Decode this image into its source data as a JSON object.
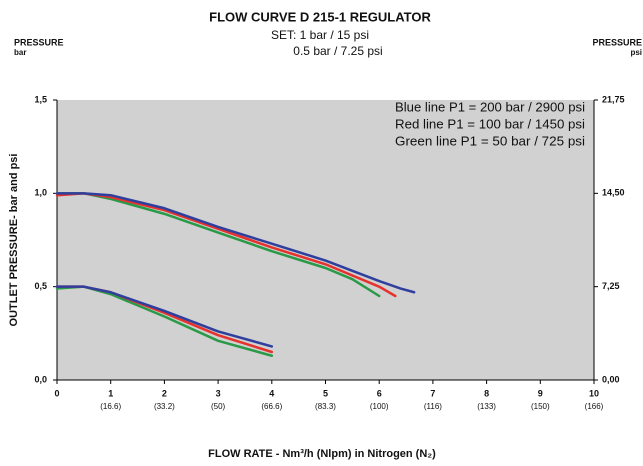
{
  "chart_data": {
    "type": "line",
    "title": "FLOW CURVE D 215-1 REGULATOR",
    "subtitle": [
      "SET: 1 bar / 15 psi",
      "0.5 bar / 7.25 psi"
    ],
    "left_axis_header": [
      "PRESSURE",
      "bar"
    ],
    "right_axis_header": [
      "PRESSURE",
      "psi"
    ],
    "y_label": "OUTLET PRESSURE- bar and psi",
    "x_label": "FLOW RATE - Nm³/h (Nlpm) in Nitrogen (N₂)",
    "xlim": [
      0,
      10
    ],
    "xticks": [
      0,
      1,
      2,
      3,
      4,
      5,
      6,
      7,
      8,
      9,
      10
    ],
    "xticks2": [
      {
        "value": 1,
        "label": "(16.6)"
      },
      {
        "value": 2,
        "label": "(33.2)"
      },
      {
        "value": 3,
        "label": "(50)"
      },
      {
        "value": 4,
        "label": "(66.6)"
      },
      {
        "value": 5,
        "label": "(83.3)"
      },
      {
        "value": 6,
        "label": "(100)"
      },
      {
        "value": 7,
        "label": "(116)"
      },
      {
        "value": 8,
        "label": "(133)"
      },
      {
        "value": 9,
        "label": "(150)"
      },
      {
        "value": 10,
        "label": "(166)"
      }
    ],
    "ylim": [
      0,
      1.5
    ],
    "yticks": [
      {
        "value": 0,
        "label": "0,0"
      },
      {
        "value": 0.5,
        "label": "0,5"
      },
      {
        "value": 1,
        "label": "1,0"
      },
      {
        "value": 1.5,
        "label": "1,5"
      }
    ],
    "y2lim": [
      0,
      21.75
    ],
    "y2ticks": [
      {
        "value": 0,
        "label": "0,00"
      },
      {
        "value": 7.25,
        "label": "7,25"
      },
      {
        "value": 14.5,
        "label": "14,50"
      },
      {
        "value": 21.75,
        "label": "21,75"
      }
    ],
    "background": "#d1d1d1",
    "series": [
      {
        "name": "Blue line P1 = 200 bar / 2900 psi",
        "color": "#2f3f9e",
        "x": [
          0,
          0.5,
          1,
          2,
          3,
          4,
          5,
          6,
          6.4,
          6.65
        ],
        "values": [
          1.0,
          1.0,
          0.99,
          0.92,
          0.82,
          0.73,
          0.64,
          0.53,
          0.49,
          0.47
        ]
      },
      {
        "name": "Red line P1 = 100 bar / 1450 psi",
        "color": "#e5322d",
        "x": [
          0,
          0.5,
          1,
          2,
          3,
          4,
          5,
          6,
          6.3
        ],
        "values": [
          0.99,
          1.0,
          0.98,
          0.91,
          0.81,
          0.71,
          0.62,
          0.5,
          0.45
        ]
      },
      {
        "name": "Green line P1 = 50 bar / 725 psi",
        "color": "#2a9a48",
        "x": [
          0,
          0.5,
          1,
          2,
          3,
          4,
          5,
          5.5,
          6
        ],
        "values": [
          1.0,
          1.0,
          0.97,
          0.89,
          0.79,
          0.69,
          0.6,
          0.54,
          0.45
        ]
      },
      {
        "color": "#2f3f9e",
        "x": [
          0,
          0.5,
          1,
          2,
          3,
          4
        ],
        "values": [
          0.5,
          0.5,
          0.47,
          0.37,
          0.26,
          0.18
        ]
      },
      {
        "color": "#e5322d",
        "x": [
          0,
          0.5,
          1,
          2,
          3,
          4
        ],
        "values": [
          0.5,
          0.5,
          0.47,
          0.36,
          0.24,
          0.15
        ]
      },
      {
        "color": "#2a9a48",
        "x": [
          0,
          0.5,
          1,
          2,
          3,
          4
        ],
        "values": [
          0.49,
          0.5,
          0.46,
          0.34,
          0.21,
          0.13
        ]
      }
    ]
  }
}
